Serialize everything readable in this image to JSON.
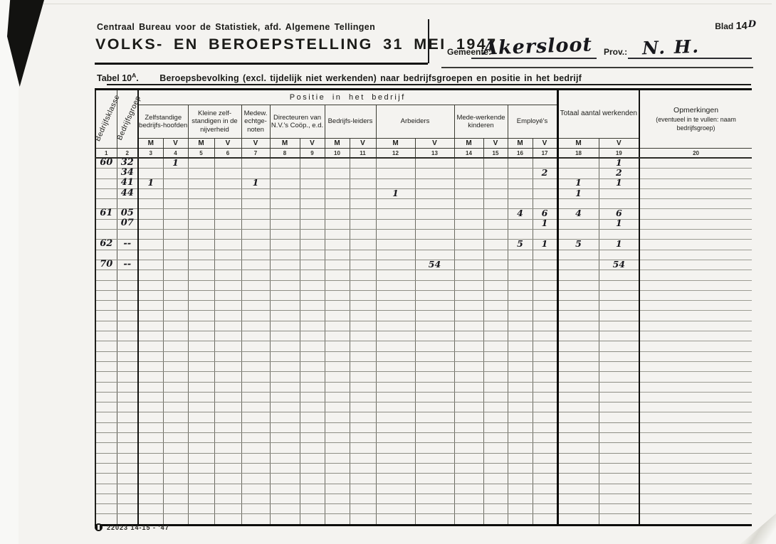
{
  "header": {
    "bureau": "Centraal Bureau voor de Statistiek, afd. Algemene Tellingen",
    "title": "VOLKS- EN BEROEPSTELLING 31 MEI 1947",
    "blad_label": "Blad",
    "blad_number": "14",
    "blad_handwritten": "D",
    "gemeente_label": "Gemeente:",
    "gemeente_value": "Akersloot",
    "prov_label": "Prov.:",
    "prov_value": "N. H."
  },
  "tabel": {
    "label": "Tabel 10",
    "superscript": "A",
    "punct": ".",
    "title": "Beroepsbevolking (excl. tijdelijk niet werkenden) naar bedrijfsgroepen en positie in het bedrijf"
  },
  "table": {
    "rotated_col1": "Bedrijfsklasse",
    "rotated_col2": "Bedrijfsgroep",
    "positie": "Positie in het bedrijf",
    "totaal": "Totaal aantal werkenden",
    "opmerkingen_title": "Opmerkingen",
    "opmerkingen_sub": "(eventueel in te vullen: naam bedrijfsgroep)",
    "groups": [
      {
        "label": "Zelfstandige bedrijfs-hoofden"
      },
      {
        "label": "Kleine zelf-standigen in de nijverheid"
      },
      {
        "label": "Medew. echtge-noten"
      },
      {
        "label": "Directeuren van N.V.'s Coöp., e.d."
      },
      {
        "label": "Bedrijfs-leiders"
      },
      {
        "label": "Arbeiders"
      },
      {
        "label": "Mede-werkende kinderen"
      },
      {
        "label": "Employé's"
      }
    ],
    "mv": [
      "M",
      "V",
      "M",
      "V",
      "V",
      "M",
      "V",
      "M",
      "V",
      "M",
      "V",
      "M",
      "V",
      "M",
      "V",
      "M",
      "V"
    ],
    "numbers": [
      "1",
      "2",
      "3",
      "4",
      "5",
      "6",
      "7",
      "8",
      "9",
      "10",
      "11",
      "12",
      "13",
      "14",
      "15",
      "16",
      "17",
      "18",
      "19",
      "20"
    ]
  },
  "body": {
    "row_count": 36,
    "entries": [
      {
        "row": 0,
        "klasse": "60",
        "groep": "32",
        "values": {
          "c4": "1",
          "c19": "1"
        }
      },
      {
        "row": 1,
        "klasse": "",
        "groep": "34",
        "values": {
          "c17": "2",
          "c19": "2"
        }
      },
      {
        "row": 2,
        "klasse": "",
        "groep": "41",
        "values": {
          "c3": "1",
          "c7": "1",
          "c18": "1",
          "c19": "1"
        }
      },
      {
        "row": 3,
        "klasse": "",
        "groep": "44",
        "values": {
          "c12": "1",
          "c18": "1"
        }
      },
      {
        "row": 5,
        "klasse": "61",
        "groep": "05",
        "values": {
          "c16": "4",
          "c17": "6",
          "c18": "4",
          "c19": "6"
        }
      },
      {
        "row": 6,
        "klasse": "",
        "groep": "07",
        "values": {
          "c17": "1",
          "c19": "1"
        }
      },
      {
        "row": 8,
        "klasse": "62",
        "groep": "--",
        "values": {
          "c16": "5",
          "c17": "1",
          "c18": "5",
          "c19": "1"
        }
      },
      {
        "row": 10,
        "klasse": "70",
        "groep": "--",
        "values": {
          "c13": "54",
          "c19": "54"
        }
      }
    ]
  },
  "footer": {
    "logo_icon": "cbs-circle-logo-icon",
    "stamp": "22023 14-15 - '47"
  },
  "colors": {
    "paper": "#f4f3f0",
    "ink": "#1b1b18",
    "grid_dark": "#3b3b32",
    "grid_light": "#8e8e85"
  }
}
